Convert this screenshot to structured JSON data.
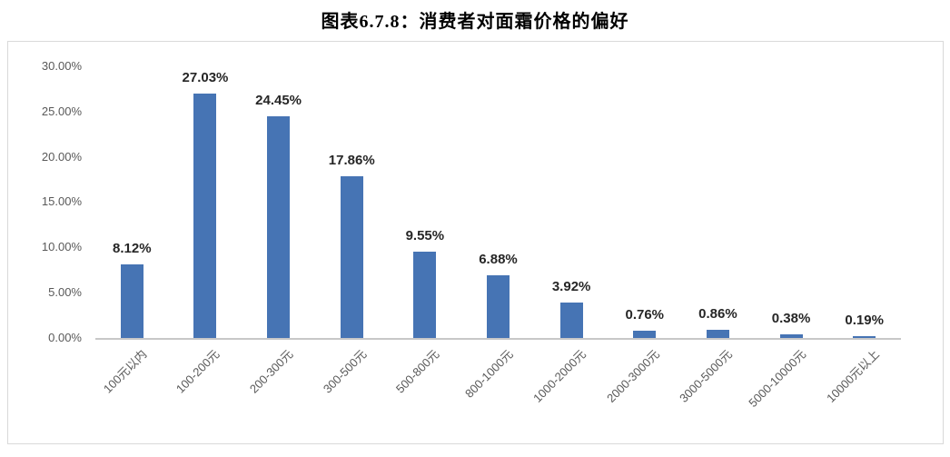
{
  "title": "图表6.7.8：消费者对面霜价格的偏好",
  "chart_data": {
    "type": "bar",
    "title": "图表6.7.8：消费者对面霜价格的偏好",
    "categories": [
      "100元以内",
      "100-200元",
      "200-300元",
      "300-500元",
      "500-800元",
      "800-1000元",
      "1000-2000元",
      "2000-3000元",
      "3000-5000元",
      "5000-10000元",
      "10000元以上"
    ],
    "values": [
      8.12,
      27.03,
      24.45,
      17.86,
      9.55,
      6.88,
      3.92,
      0.76,
      0.86,
      0.38,
      0.19
    ],
    "data_labels": [
      "8.12%",
      "27.03%",
      "24.45%",
      "17.86%",
      "9.55%",
      "6.88%",
      "3.92%",
      "0.76%",
      "0.86%",
      "0.38%",
      "0.19%"
    ],
    "xlabel": "",
    "ylabel": "",
    "ylim": [
      0,
      30
    ],
    "ytick_labels": [
      "0.00%",
      "5.00%",
      "10.00%",
      "15.00%",
      "20.00%",
      "25.00%",
      "30.00%"
    ],
    "ytick_values": [
      0,
      5,
      10,
      15,
      20,
      25,
      30
    ],
    "grid": false,
    "legend": false,
    "bar_color": "#4674b4",
    "data_label_color": "#262626",
    "axis_label_color": "#595959",
    "border_color": "#d9d9d9"
  }
}
